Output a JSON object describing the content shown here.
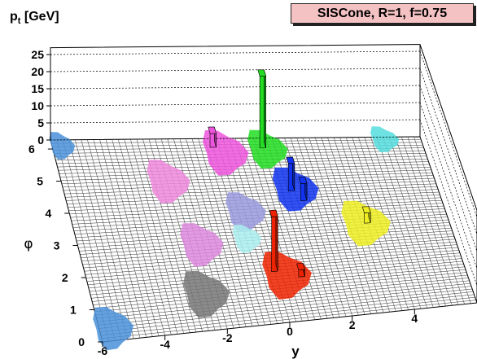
{
  "legend": {
    "text": "SISCone, R=1, f=0.75"
  },
  "axes": {
    "z_label_main": "p",
    "z_label_sub": "t",
    "z_label_unit": " [GeV]",
    "x_label": "y",
    "y_label": "φ"
  },
  "chart_data": {
    "type": "lego",
    "title": "",
    "legend": "SISCone, R=1, f=0.75",
    "xlabel": "y",
    "ylabel": "φ",
    "zlabel": "p_t [GeV]",
    "x_ticks": [
      "-6",
      "-4",
      "-2",
      "0",
      "2",
      "4"
    ],
    "y_ticks": [
      "0",
      "1",
      "2",
      "3",
      "4",
      "5",
      "6"
    ],
    "z_ticks": [
      "0",
      "5",
      "10",
      "15",
      "20",
      "25"
    ],
    "xlim": [
      -6,
      6
    ],
    "ylim": [
      0,
      6.28
    ],
    "zlim": [
      0,
      27
    ],
    "jets": [
      {
        "y": -5.7,
        "phi": 6.1,
        "r": 0.45,
        "color": "#4a90d9"
      },
      {
        "y": -5.6,
        "phi": 0.4,
        "r": 0.7,
        "color": "#4a90d9"
      },
      {
        "y": -2.6,
        "phi": 4.9,
        "r": 0.75,
        "color": "#ee88dd"
      },
      {
        "y": -2.1,
        "phi": 2.8,
        "r": 0.75,
        "color": "#dd88dd"
      },
      {
        "y": -2.4,
        "phi": 1.2,
        "r": 0.8,
        "color": "#777777"
      },
      {
        "y": -0.5,
        "phi": 5.8,
        "r": 0.8,
        "color": "#ee55dd"
      },
      {
        "y": 0.9,
        "phi": 5.9,
        "r": 0.7,
        "color": "#22dd22"
      },
      {
        "y": -0.4,
        "phi": 3.8,
        "r": 0.7,
        "color": "#9999dd"
      },
      {
        "y": -0.6,
        "phi": 2.9,
        "r": 0.5,
        "color": "#aaeeee"
      },
      {
        "y": 1.4,
        "phi": 4.5,
        "r": 0.8,
        "color": "#1133ee"
      },
      {
        "y": 0.3,
        "phi": 1.6,
        "r": 0.85,
        "color": "#ee2200"
      },
      {
        "y": 3.3,
        "phi": 3.2,
        "r": 0.85,
        "color": "#eeee22"
      },
      {
        "y": 4.8,
        "phi": 6.2,
        "r": 0.5,
        "color": "#55dddd"
      }
    ],
    "towers": [
      {
        "y": 0.8,
        "phi": 6.05,
        "pt": 21,
        "color": "#22dd22"
      },
      {
        "y": 0.0,
        "phi": 1.85,
        "pt": 16,
        "color": "#ee2200"
      },
      {
        "y": 1.3,
        "phi": 4.55,
        "pt": 8,
        "color": "#1133ee"
      },
      {
        "y": 1.6,
        "phi": 4.2,
        "pt": 5,
        "color": "#1133ee"
      },
      {
        "y": -0.8,
        "phi": 6.1,
        "pt": 4,
        "color": "#ee55dd"
      },
      {
        "y": 3.4,
        "phi": 3.3,
        "pt": 3,
        "color": "#eeee22"
      },
      {
        "y": 0.8,
        "phi": 1.6,
        "pt": 2,
        "color": "#ee2200"
      }
    ]
  }
}
